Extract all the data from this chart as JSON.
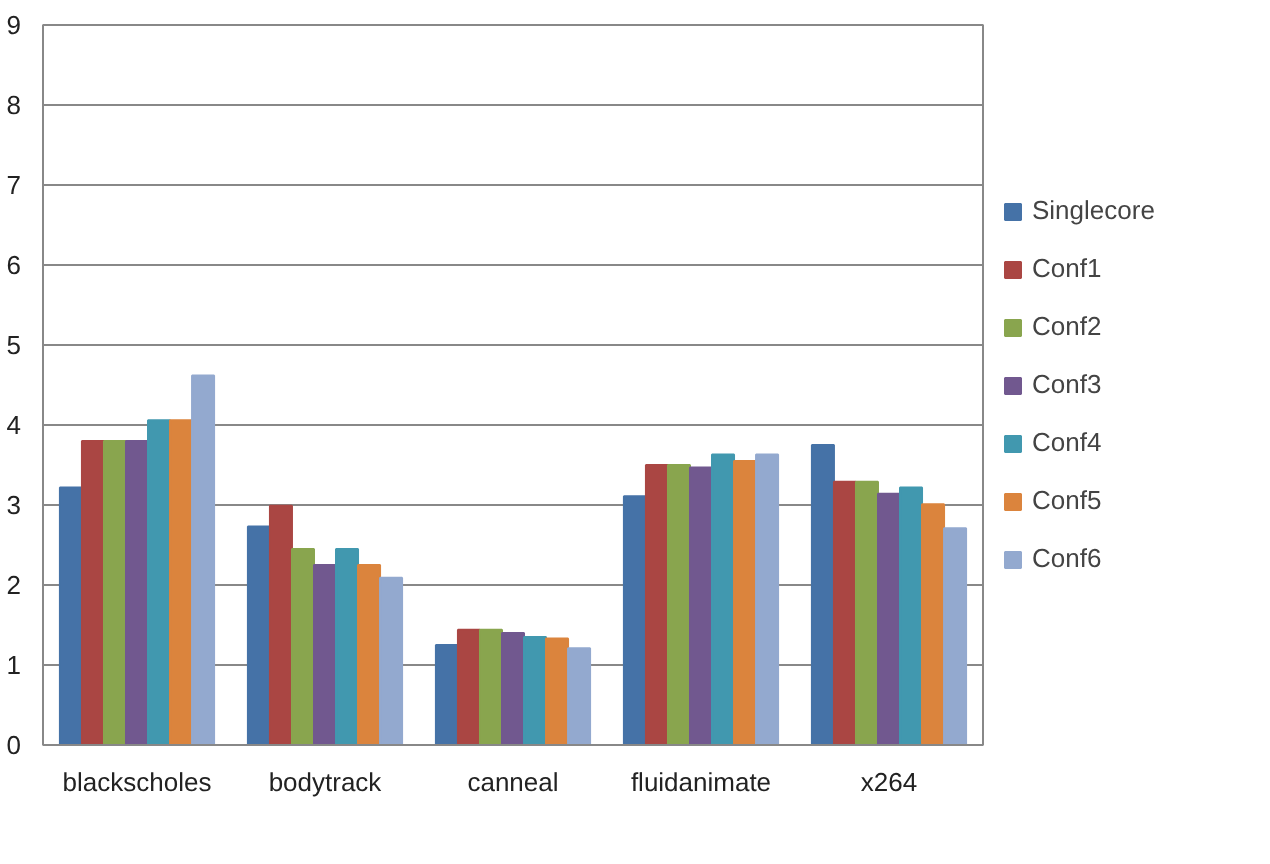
{
  "chart_data": {
    "type": "bar",
    "categories": [
      "blackscholes",
      "bodytrack",
      "canneal",
      "fluidanimate",
      "x264"
    ],
    "series": [
      {
        "name": "Singlecore",
        "color": "#4572a7",
        "values": [
          3.22,
          2.73,
          1.25,
          3.11,
          3.75
        ]
      },
      {
        "name": "Conf1",
        "color": "#aa4643",
        "values": [
          3.8,
          2.99,
          1.44,
          3.5,
          3.29
        ]
      },
      {
        "name": "Conf2",
        "color": "#89a54e",
        "values": [
          3.8,
          2.45,
          1.44,
          3.5,
          3.29
        ]
      },
      {
        "name": "Conf3",
        "color": "#71588f",
        "values": [
          3.8,
          2.25,
          1.4,
          3.47,
          3.14
        ]
      },
      {
        "name": "Conf4",
        "color": "#4198af",
        "values": [
          4.06,
          2.45,
          1.35,
          3.63,
          3.22
        ]
      },
      {
        "name": "Conf5",
        "color": "#db843d",
        "values": [
          4.06,
          2.25,
          1.33,
          3.55,
          3.01
        ]
      },
      {
        "name": "Conf6",
        "color": "#93a9cf",
        "values": [
          4.62,
          2.09,
          1.21,
          3.63,
          2.71
        ]
      }
    ],
    "ylim": [
      0,
      9
    ],
    "yticks": [
      0,
      1,
      2,
      3,
      4,
      5,
      6,
      7,
      8,
      9
    ],
    "grid": "y",
    "legend": "right"
  }
}
